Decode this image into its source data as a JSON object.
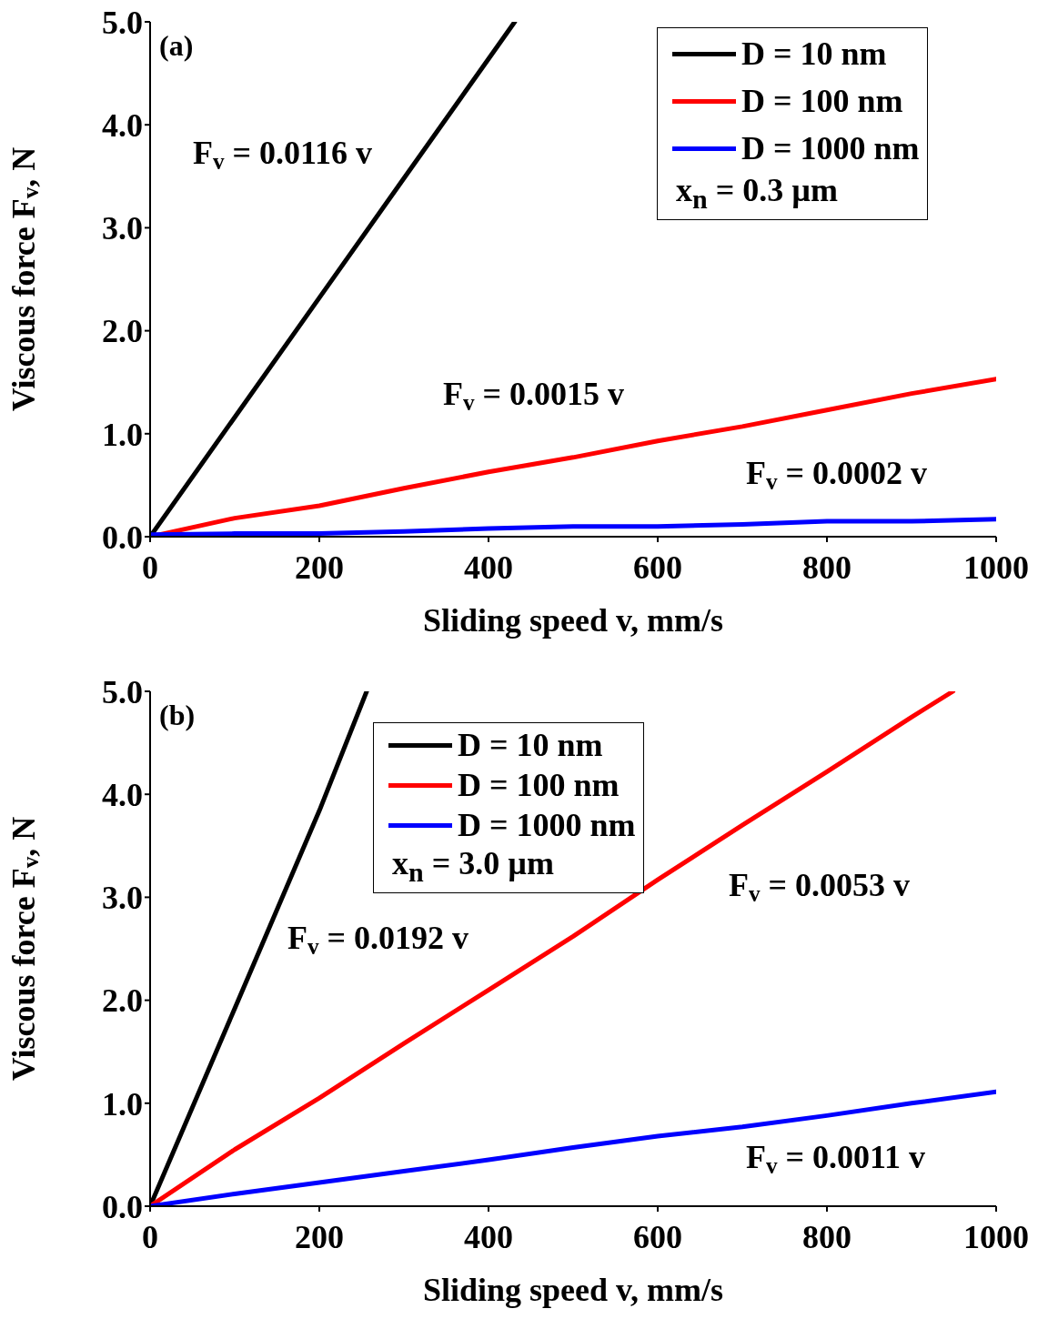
{
  "chart_data": [
    {
      "type": "line",
      "title": "(a)",
      "xlabel": "Sliding speed v, mm/s",
      "ylabel": "Viscous force F$_{v}$, N",
      "xlim": [
        0,
        1000
      ],
      "xticks": [
        0,
        200,
        400,
        600,
        800,
        1000
      ],
      "ylim": [
        0,
        5
      ],
      "yticks": [
        {
          "value": 0,
          "label": "0.0"
        },
        {
          "value": 1,
          "label": "1.0"
        },
        {
          "value": 2,
          "label": "2.0"
        },
        {
          "value": 3,
          "label": "3.0"
        },
        {
          "value": 4,
          "label": "4.0"
        },
        {
          "value": 5,
          "label": "5.0"
        }
      ],
      "grid": false,
      "legend": "top right",
      "legend_title": "x$_{n}$ = 0.3 µm",
      "marker": "none",
      "line_style": "solid",
      "series": [
        {
          "name": "D = 10 nm",
          "color": "#000000",
          "x": [
            0,
            100,
            200,
            300,
            400,
            431
          ],
          "values": [
            0,
            1.16,
            2.32,
            3.48,
            4.64,
            5.0
          ]
        },
        {
          "name": "D = 100 nm",
          "color": "#ff0000",
          "x": [
            0,
            100,
            200,
            300,
            400,
            500,
            600,
            700,
            800,
            900,
            1000
          ],
          "values": [
            0,
            0.18,
            0.3,
            0.47,
            0.63,
            0.77,
            0.93,
            1.07,
            1.23,
            1.39,
            1.53
          ]
        },
        {
          "name": "D = 1000 nm",
          "color": "#0000ff",
          "x": [
            0,
            100,
            200,
            300,
            400,
            500,
            600,
            700,
            800,
            900,
            1000
          ],
          "values": [
            0.02,
            0.03,
            0.03,
            0.05,
            0.08,
            0.1,
            0.1,
            0.12,
            0.15,
            0.15,
            0.17
          ]
        }
      ],
      "annotations": [
        "F$_{v}$ = 0.0116 v",
        "F$_{v}$ = 0.0015 v",
        "F$_{v}$ = 0.0002 v"
      ]
    },
    {
      "type": "line",
      "title": "(b)",
      "xlabel": "Sliding speed v, mm/s",
      "ylabel": "Viscous force F$_{v}$, N",
      "xlim": [
        0,
        1000
      ],
      "xticks": [
        0,
        200,
        400,
        600,
        800,
        1000
      ],
      "ylim": [
        0,
        5
      ],
      "yticks": [
        {
          "value": 0,
          "label": "0.0"
        },
        {
          "value": 1,
          "label": "1.0"
        },
        {
          "value": 2,
          "label": "2.0"
        },
        {
          "value": 3,
          "label": "3.0"
        },
        {
          "value": 4,
          "label": "4.0"
        },
        {
          "value": 5,
          "label": "5.0"
        }
      ],
      "grid": false,
      "legend": "top left",
      "legend_title": "x$_{n}$ = 3.0 µm",
      "marker": "none",
      "line_style": "solid",
      "series": [
        {
          "name": "D = 10 nm",
          "color": "#000000",
          "x": [
            0,
            100,
            200,
            256
          ],
          "values": [
            0,
            1.92,
            3.84,
            5.0
          ]
        },
        {
          "name": "D = 100 nm",
          "color": "#ff0000",
          "x": [
            0,
            100,
            200,
            300,
            400,
            500,
            600,
            700,
            800,
            900,
            949
          ],
          "values": [
            0,
            0.55,
            1.05,
            1.58,
            2.1,
            2.62,
            3.17,
            3.7,
            4.22,
            4.75,
            5.0
          ]
        },
        {
          "name": "D = 1000 nm",
          "color": "#0000ff",
          "x": [
            0,
            100,
            200,
            300,
            400,
            500,
            600,
            700,
            800,
            900,
            1000
          ],
          "values": [
            0,
            0.12,
            0.23,
            0.34,
            0.45,
            0.57,
            0.68,
            0.77,
            0.88,
            1.0,
            1.11
          ]
        }
      ],
      "annotations": [
        "F$_{v}$ = 0.0192 v",
        "F$_{v}$ = 0.0053 v",
        "F$_{v}$ = 0.0011 v"
      ]
    }
  ]
}
